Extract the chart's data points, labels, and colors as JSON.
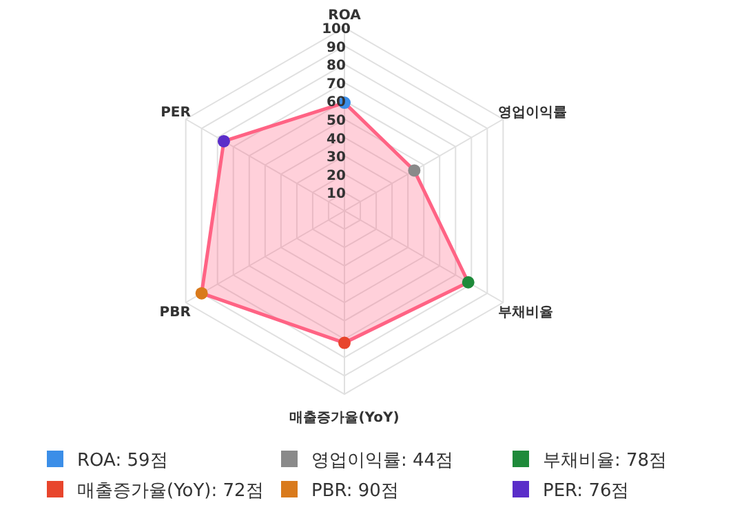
{
  "chart_data": {
    "type": "radar",
    "categories": [
      "ROA",
      "영업이익률",
      "부채비율",
      "매출증가율(YoY)",
      "PBR",
      "PER"
    ],
    "ylim": [
      0,
      100
    ],
    "yticks": [
      10,
      20,
      30,
      40,
      50,
      60,
      70,
      80,
      90,
      100
    ],
    "grid": true,
    "marker": "circle",
    "annotations": [
      "ROA: 59점",
      "영업이익률: 44점",
      "부채비율: 78점",
      "매출증가율(YoY): 72점",
      "PBR: 90점",
      "PER: 76점"
    ],
    "series": [
      {
        "color": "#ff6384",
        "colors": [
          "#3b8ee8",
          "#8a8a8a",
          "#1e8a3a",
          "#e8452c",
          "#d97a1c",
          "#5a2dc9"
        ],
        "values": [
          59,
          44,
          78,
          72,
          90,
          76
        ]
      }
    ]
  }
}
